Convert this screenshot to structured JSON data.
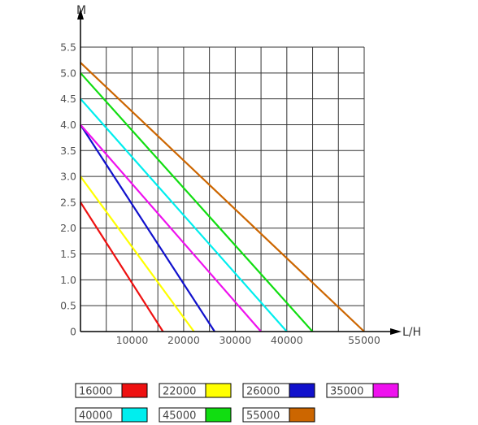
{
  "chart_data": {
    "type": "line",
    "xlabel": "L/H",
    "ylabel": "M",
    "xlim": [
      0,
      55000
    ],
    "ylim": [
      0,
      5.5
    ],
    "x_ticks": [
      "10000",
      "20000",
      "30000",
      "40000",
      "55000"
    ],
    "x_tick_values": [
      10000,
      20000,
      30000,
      40000,
      55000
    ],
    "y_ticks": [
      "5.5",
      "5.0",
      "4.5",
      "4.0",
      "3.5",
      "3.0",
      "2.5",
      "2.0",
      "1.5",
      "1.0",
      "0.5",
      "0"
    ],
    "y_tick_values": [
      5.5,
      5.0,
      4.5,
      4.0,
      3.5,
      3.0,
      2.5,
      2.0,
      1.5,
      1.0,
      0.5,
      0
    ],
    "grid": true,
    "legend_position": "bottom",
    "series": [
      {
        "name": "16000",
        "color": "#ee1111",
        "x": [
          0,
          16000
        ],
        "y": [
          2.5,
          0
        ]
      },
      {
        "name": "22000",
        "color": "#ffff00",
        "x": [
          0,
          22000
        ],
        "y": [
          3.0,
          0
        ]
      },
      {
        "name": "26000",
        "color": "#1111cc",
        "x": [
          0,
          26000
        ],
        "y": [
          4.0,
          0
        ]
      },
      {
        "name": "35000",
        "color": "#ee11ee",
        "x": [
          0,
          35000
        ],
        "y": [
          4.0,
          0
        ]
      },
      {
        "name": "40000",
        "color": "#00eeee",
        "x": [
          0,
          40000
        ],
        "y": [
          4.5,
          0
        ]
      },
      {
        "name": "45000",
        "color": "#11dd11",
        "x": [
          0,
          45000
        ],
        "y": [
          5.0,
          0
        ]
      },
      {
        "name": "55000",
        "color": "#cc6600",
        "x": [
          0,
          55000
        ],
        "y": [
          5.2,
          0
        ]
      }
    ]
  }
}
